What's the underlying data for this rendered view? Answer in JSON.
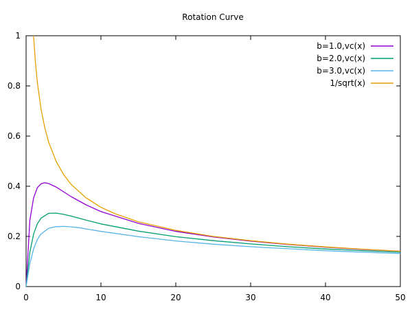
{
  "chart_data": {
    "type": "line",
    "title": "Rotation Curve",
    "xlabel": "",
    "ylabel": "",
    "xlim": [
      0,
      50
    ],
    "ylim": [
      0,
      1
    ],
    "x_ticks": [
      0,
      10,
      20,
      30,
      40,
      50
    ],
    "y_ticks": [
      0,
      0.2,
      0.4,
      0.6,
      0.8,
      1
    ],
    "x_tick_labels": [
      "0",
      "10",
      "20",
      "30",
      "40",
      "50"
    ],
    "y_tick_labels": [
      "0",
      "0.2",
      "0.4",
      "0.6",
      "0.8",
      "1"
    ],
    "grid": false,
    "legend_position": "top-right",
    "series": [
      {
        "name": "b=1.0,vc(x)",
        "color": "#9400d3",
        "x": [
          0,
          0.5,
          1,
          1.5,
          2,
          2.5,
          3,
          4,
          5,
          6,
          8,
          10,
          15,
          20,
          25,
          30,
          35,
          40,
          45,
          50
        ],
        "y": [
          0,
          0.265,
          0.353,
          0.394,
          0.41,
          0.414,
          0.411,
          0.397,
          0.378,
          0.359,
          0.326,
          0.299,
          0.252,
          0.22,
          0.198,
          0.181,
          0.168,
          0.157,
          0.148,
          0.141
        ]
      },
      {
        "name": "b=2.0,vc(x)",
        "color": "#009e73",
        "x": [
          0,
          0.5,
          1,
          1.5,
          2,
          3,
          4,
          5,
          6,
          8,
          10,
          15,
          20,
          25,
          30,
          35,
          40,
          45,
          50
        ],
        "y": [
          0,
          0.137,
          0.209,
          0.25,
          0.273,
          0.292,
          0.293,
          0.288,
          0.281,
          0.265,
          0.25,
          0.221,
          0.199,
          0.183,
          0.17,
          0.159,
          0.15,
          0.143,
          0.137
        ]
      },
      {
        "name": "b=3.0,vc(x)",
        "color": "#56b4e9",
        "x": [
          0,
          0.5,
          1,
          1.5,
          2,
          3,
          4,
          5,
          6,
          7,
          8,
          10,
          15,
          20,
          25,
          30,
          35,
          40,
          45,
          50
        ],
        "y": [
          0,
          0.092,
          0.15,
          0.187,
          0.21,
          0.232,
          0.239,
          0.24,
          0.238,
          0.235,
          0.23,
          0.22,
          0.199,
          0.182,
          0.169,
          0.159,
          0.151,
          0.143,
          0.137,
          0.132
        ]
      },
      {
        "name": "1/sqrt(x)",
        "color": "#e69f00",
        "x": [
          1,
          1.25,
          1.5,
          2,
          2.5,
          3,
          4,
          5,
          6,
          8,
          10,
          12,
          15,
          20,
          25,
          30,
          35,
          40,
          45,
          50
        ],
        "y": [
          1,
          0.894,
          0.816,
          0.707,
          0.632,
          0.577,
          0.5,
          0.447,
          0.408,
          0.354,
          0.316,
          0.289,
          0.258,
          0.224,
          0.2,
          0.183,
          0.169,
          0.158,
          0.149,
          0.141
        ]
      }
    ]
  }
}
